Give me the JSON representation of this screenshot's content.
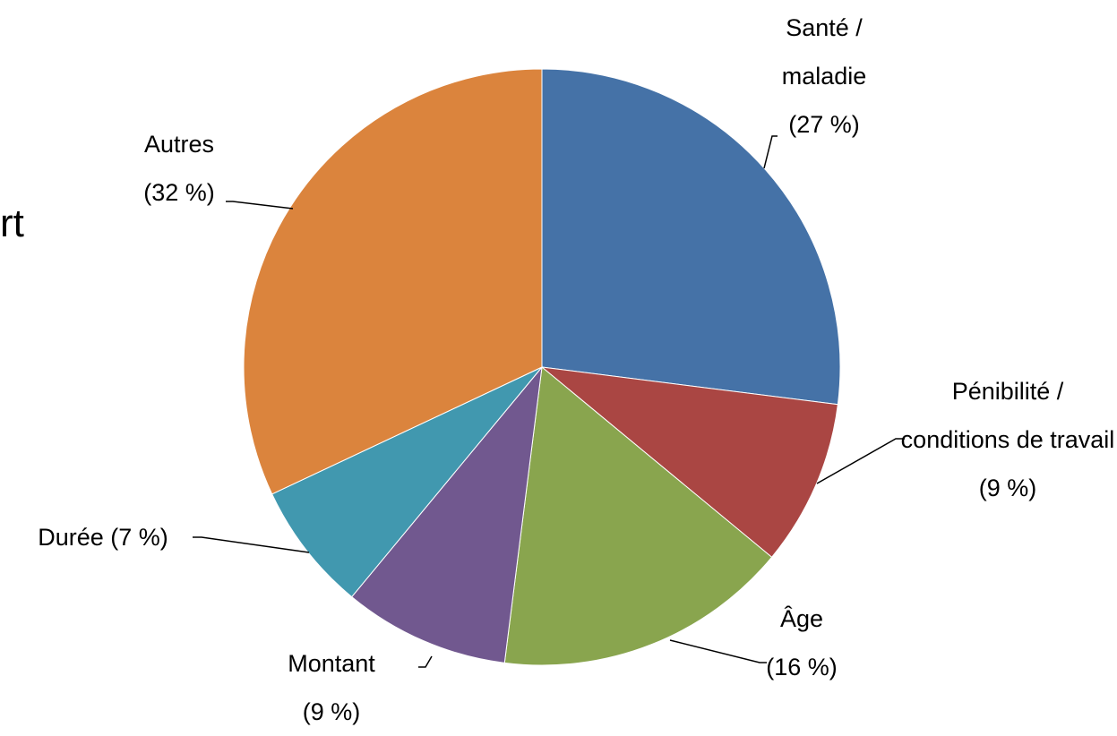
{
  "chart_data": {
    "type": "pie",
    "annotations": [
      "rt"
    ],
    "categories": [
      "Santé / maladie",
      "Pénibilité / conditions de travail",
      "Âge",
      "Montant",
      "Durée",
      "Autres"
    ],
    "values": [
      27,
      9,
      16,
      9,
      7,
      32
    ],
    "value_labels": [
      "(27 %)",
      "(9 %)",
      "(16 %)",
      "(9 %)",
      "(7 %)",
      "(32 %)"
    ],
    "colors": [
      "#4572a7",
      "#aa4643",
      "#89a54e",
      "#71588f",
      "#4198af",
      "#db843d"
    ]
  }
}
